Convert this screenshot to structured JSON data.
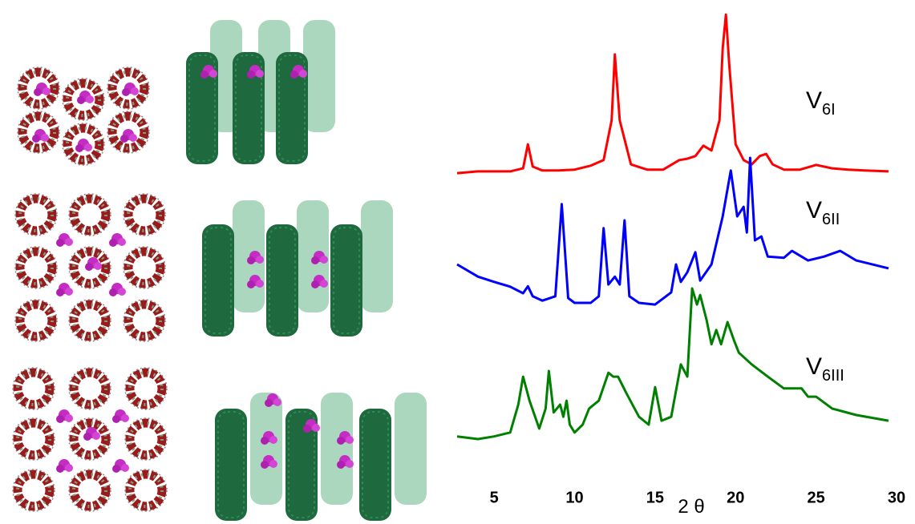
{
  "chart_data": {
    "type": "line",
    "xlabel": "2 θ",
    "xlim": [
      2.7,
      29.6
    ],
    "xticks": [
      5,
      10,
      15,
      20,
      25,
      30
    ],
    "ylim": [
      0,
      100
    ],
    "series": [
      {
        "name": "V",
        "subscript": "6I",
        "color": "#ff0000",
        "x": [
          2.7,
          4,
          5,
          6,
          6.8,
          7.1,
          7.4,
          8,
          9,
          10,
          11,
          11.8,
          12.3,
          12.5,
          12.8,
          13.5,
          14.5,
          15.5,
          16.5,
          17,
          17.5,
          18,
          18.5,
          19,
          19.2,
          19.4,
          19.6,
          20,
          20.5,
          21,
          21.5,
          21.9,
          22.3,
          23,
          24,
          25,
          26,
          27,
          28,
          29.5
        ],
        "values": [
          63.1,
          63.5,
          63.5,
          63.5,
          64.2,
          69.7,
          64.6,
          63.7,
          63.7,
          63.9,
          64.8,
          66.1,
          75.2,
          90.3,
          75.2,
          65.1,
          63.9,
          63.9,
          66.1,
          66.4,
          67.0,
          69.4,
          68.3,
          75.2,
          91.7,
          99.4,
          88.1,
          69.7,
          66.1,
          65.1,
          67.0,
          67.5,
          65.1,
          63.9,
          63.9,
          65.0,
          64.2,
          63.9,
          63.7,
          63.5
        ]
      },
      {
        "name": "V",
        "subscript": "6II",
        "color": "#0000ff",
        "x": [
          2.7,
          4,
          5,
          6,
          6.8,
          7.1,
          7.4,
          8,
          8.8,
          9.2,
          9.6,
          10,
          11,
          11.5,
          11.8,
          12.1,
          12.5,
          12.8,
          13.1,
          13.4,
          14,
          15,
          16,
          16.3,
          16.6,
          17,
          17.5,
          17.8,
          18.5,
          19.2,
          19.7,
          20.1,
          20.5,
          20.7,
          20.9,
          21.2,
          21.6,
          22,
          23,
          23.5,
          24.5,
          25.5,
          26.5,
          27.5,
          29.5
        ],
        "values": [
          42.2,
          39.4,
          38.2,
          37.1,
          35.6,
          37.2,
          34.9,
          33.9,
          34.9,
          56.0,
          34.5,
          33.4,
          33.4,
          34.9,
          50.5,
          37.6,
          39.4,
          37.6,
          52.3,
          34.9,
          33.4,
          33.0,
          35.8,
          42.2,
          38.2,
          40.4,
          45.0,
          38.5,
          42.2,
          53.2,
          63.7,
          53.2,
          55.4,
          49.5,
          66.6,
          47.7,
          48.6,
          44.0,
          43.7,
          45.3,
          43.1,
          44.0,
          45.3,
          43.1,
          41.3
        ]
      },
      {
        "name": "V",
        "subscript": "6III",
        "color": "#008000",
        "x": [
          2.7,
          4,
          5,
          6,
          6.5,
          6.8,
          7.2,
          7.8,
          8.2,
          8.4,
          8.7,
          9.1,
          9.3,
          9.5,
          9.7,
          10,
          10.5,
          10.9,
          11.5,
          12.1,
          12.4,
          12.7,
          13.2,
          14,
          14.6,
          15,
          15.4,
          16,
          16.6,
          17,
          17.3,
          17.6,
          17.8,
          18.2,
          18.5,
          18.8,
          19.1,
          19.5,
          19.9,
          20.2,
          21,
          22,
          23,
          24.1,
          24.5,
          25,
          26,
          27.5,
          29.5
        ],
        "values": [
          2.8,
          2.2,
          2.8,
          3.7,
          10.1,
          16.5,
          11.0,
          4.6,
          9.2,
          17.8,
          8.3,
          10.1,
          7.3,
          11.0,
          5.5,
          3.7,
          5.5,
          9.2,
          11.0,
          17.4,
          16.5,
          16.5,
          12.8,
          7.3,
          5.5,
          14.1,
          6.4,
          7.3,
          19.3,
          16.5,
          36.7,
          33.0,
          35.2,
          29.4,
          23.9,
          27.2,
          23.9,
          29.0,
          24.8,
          22.0,
          19.3,
          16.5,
          13.8,
          13.8,
          11.9,
          11.9,
          9.2,
          7.7,
          6.4
        ]
      }
    ]
  }
}
